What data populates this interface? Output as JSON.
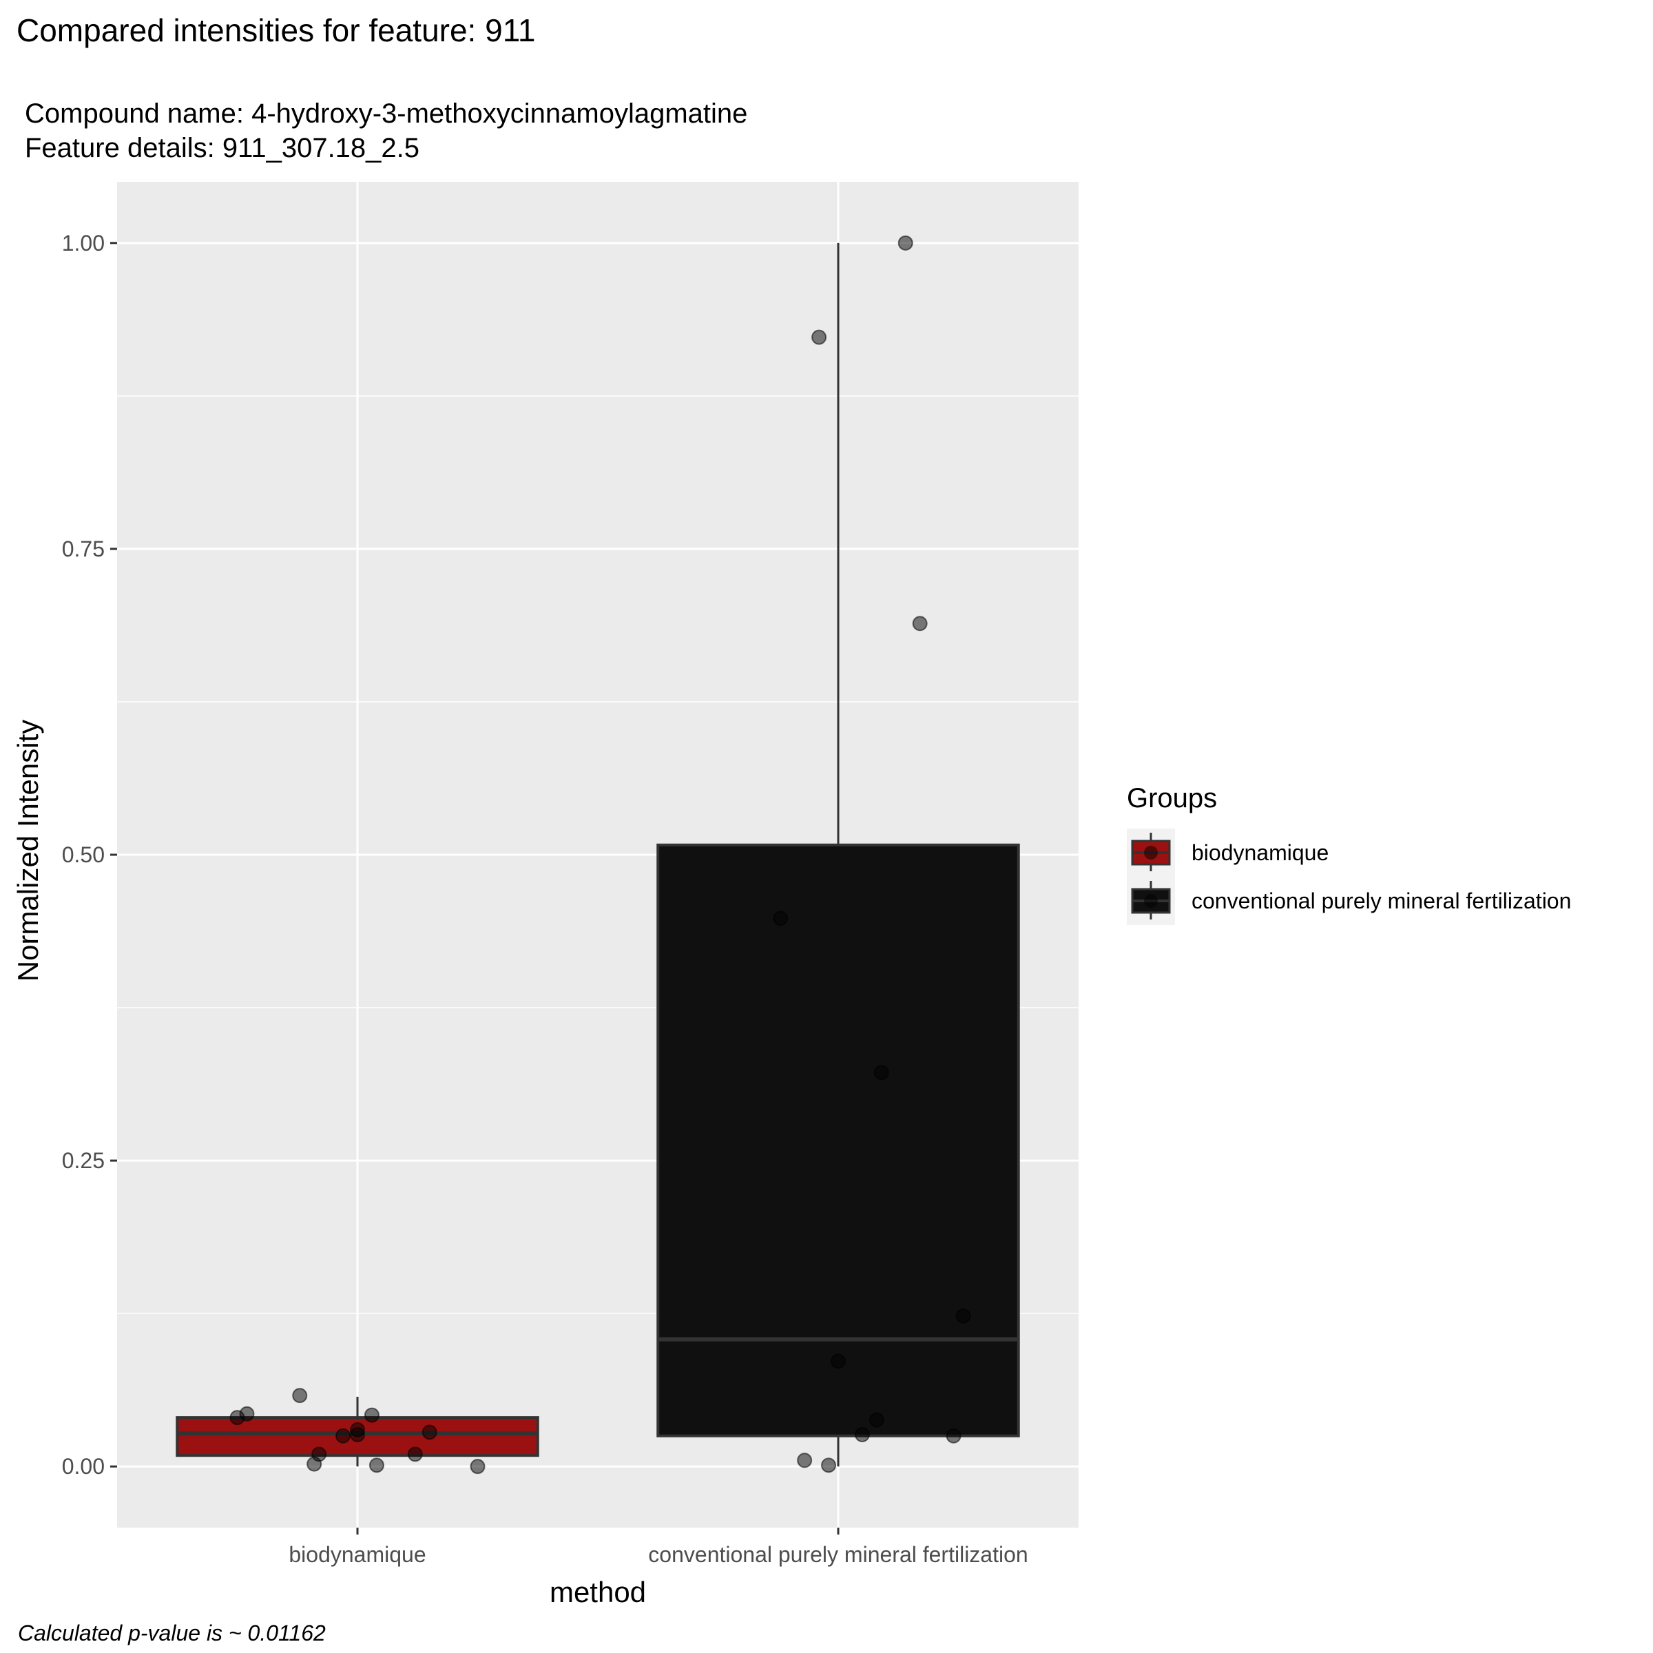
{
  "title": "Compared intensities for feature: 911",
  "subtitle_lines": [
    "Compound name:  4-hydroxy-3-methoxycinnamoylagmatine",
    "Feature details:  911_307.18_2.5"
  ],
  "caption": "Calculated p-value is ~  0.01162",
  "chart_data": {
    "type": "boxplot",
    "xlabel": "method",
    "ylabel": "Normalized Intensity",
    "categories": [
      "biodynamique",
      "conventional purely mineral fertilization"
    ],
    "ylim": [
      -0.05,
      1.05
    ],
    "yticks": [
      0.0,
      0.25,
      0.5,
      0.75,
      1.0
    ],
    "ytick_labels": [
      "0.00",
      "0.25",
      "0.50",
      "0.75",
      "1.00"
    ],
    "grid": true,
    "background": "#ebebeb",
    "legend": {
      "title": "Groups",
      "position": "right",
      "entries": [
        "biodynamique",
        "conventional purely mineral fertilization"
      ]
    },
    "series": [
      {
        "name": "biodynamique",
        "color": "#9b1111",
        "whisker_low": 0.0,
        "q1": 0.009,
        "median": 0.027,
        "q3": 0.04,
        "whisker_high": 0.057,
        "points": [
          {
            "x_offset": -0.25,
            "y": 0.04
          },
          {
            "x_offset": -0.23,
            "y": 0.043
          },
          {
            "x_offset": -0.12,
            "y": 0.058
          },
          {
            "x_offset": 0.03,
            "y": 0.042
          },
          {
            "x_offset": -0.03,
            "y": 0.025
          },
          {
            "x_offset": 0.0,
            "y": 0.03
          },
          {
            "x_offset": 0.0,
            "y": 0.026
          },
          {
            "x_offset": 0.15,
            "y": 0.028
          },
          {
            "x_offset": -0.08,
            "y": 0.01
          },
          {
            "x_offset": 0.12,
            "y": 0.01
          },
          {
            "x_offset": -0.09,
            "y": 0.002
          },
          {
            "x_offset": 0.04,
            "y": 0.001
          },
          {
            "x_offset": 0.25,
            "y": 0.0
          }
        ]
      },
      {
        "name": "conventional purely mineral fertilization",
        "color": "#101010",
        "whisker_low": 0.0,
        "q1": 0.025,
        "median": 0.104,
        "q3": 0.508,
        "whisker_high": 1.0,
        "points": [
          {
            "x_offset": 0.14,
            "y": 1.0
          },
          {
            "x_offset": -0.04,
            "y": 0.923
          },
          {
            "x_offset": 0.17,
            "y": 0.689
          },
          {
            "x_offset": -0.12,
            "y": 0.448
          },
          {
            "x_offset": 0.09,
            "y": 0.322
          },
          {
            "x_offset": 0.26,
            "y": 0.123
          },
          {
            "x_offset": 0.0,
            "y": 0.086
          },
          {
            "x_offset": 0.08,
            "y": 0.038
          },
          {
            "x_offset": 0.05,
            "y": 0.026
          },
          {
            "x_offset": 0.24,
            "y": 0.025
          },
          {
            "x_offset": -0.07,
            "y": 0.005
          },
          {
            "x_offset": -0.02,
            "y": 0.001
          }
        ]
      }
    ]
  }
}
